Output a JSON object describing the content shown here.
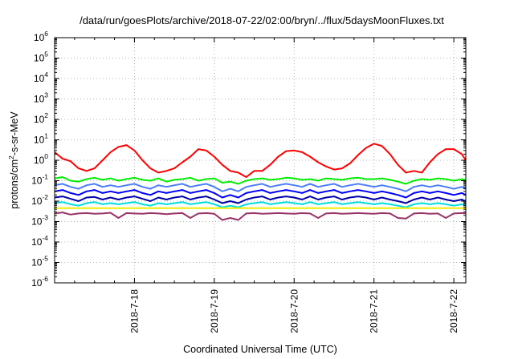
{
  "chart_data": {
    "type": "line",
    "title": "/data/run/goesPlots/archive/2018-07-22/02:00/bryn/../flux/5daysMoonFluxes.txt",
    "xlabel": "Coordinated Universal Time (UTC)",
    "ylabel": {
      "pre": "protons/cm",
      "sup": "2",
      "post": "-s-sr-MeV"
    },
    "xlim": [
      17.0,
      22.15
    ],
    "x_unit": "day of July 2018",
    "x_ticks": [
      {
        "x": 18,
        "label": "2018-7-18"
      },
      {
        "x": 19,
        "label": "2018-7-19"
      },
      {
        "x": 20,
        "label": "2018-7-20"
      },
      {
        "x": 21,
        "label": "2018-7-21"
      },
      {
        "x": 22,
        "label": "2018-7-22"
      }
    ],
    "y_scale": "log",
    "ylim_exp": [
      -6,
      6
    ],
    "y_ticks": [
      {
        "exp": -6,
        "base": "10",
        "sup": "-6"
      },
      {
        "exp": -5,
        "base": "10",
        "sup": "-5"
      },
      {
        "exp": -4,
        "base": "10",
        "sup": "-4"
      },
      {
        "exp": -3,
        "base": "10",
        "sup": "-3"
      },
      {
        "exp": -2,
        "base": "10",
        "sup": "-2"
      },
      {
        "exp": -1,
        "base": "10",
        "sup": "-1"
      },
      {
        "exp": 0,
        "base": "10",
        "sup": "0"
      },
      {
        "exp": 1,
        "base": "10",
        "sup": "1"
      },
      {
        "exp": 2,
        "base": "10",
        "sup": "2"
      },
      {
        "exp": 3,
        "base": "10",
        "sup": "3"
      },
      {
        "exp": 4,
        "base": "10",
        "sup": "4"
      },
      {
        "exp": 5,
        "base": "10",
        "sup": "5"
      },
      {
        "exp": 6,
        "base": "10",
        "sup": "6"
      }
    ],
    "grid": true,
    "x": [
      17.0,
      17.1,
      17.2,
      17.3,
      17.4,
      17.5,
      17.6,
      17.7,
      17.8,
      17.9,
      18.0,
      18.1,
      18.2,
      18.3,
      18.4,
      18.5,
      18.6,
      18.7,
      18.8,
      18.9,
      19.0,
      19.1,
      19.2,
      19.3,
      19.4,
      19.5,
      19.6,
      19.7,
      19.8,
      19.9,
      20.0,
      20.1,
      20.2,
      20.3,
      20.4,
      20.5,
      20.6,
      20.7,
      20.8,
      20.9,
      21.0,
      21.1,
      21.2,
      21.3,
      21.4,
      21.5,
      21.6,
      21.7,
      21.8,
      21.9,
      22.0,
      22.1,
      22.15
    ],
    "series": [
      {
        "color": "#ff0000",
        "values": [
          2.5,
          1.2,
          0.9,
          0.4,
          0.3,
          0.4,
          1.0,
          2.5,
          4.5,
          5.5,
          3.0,
          1.0,
          0.4,
          0.25,
          0.3,
          0.4,
          0.8,
          1.5,
          3.5,
          3.0,
          1.5,
          0.6,
          0.3,
          0.25,
          0.15,
          0.3,
          0.3,
          0.6,
          1.5,
          2.8,
          3.0,
          2.5,
          1.5,
          0.8,
          0.5,
          0.35,
          0.4,
          0.7,
          1.8,
          4.0,
          6.5,
          5.0,
          2.0,
          0.6,
          0.25,
          0.3,
          0.25,
          0.8,
          2.0,
          3.5,
          3.5,
          2.0,
          1.0
        ]
      },
      {
        "color": "#00ee00",
        "values": [
          0.13,
          0.15,
          0.1,
          0.09,
          0.12,
          0.14,
          0.11,
          0.13,
          0.1,
          0.12,
          0.14,
          0.11,
          0.1,
          0.13,
          0.09,
          0.11,
          0.12,
          0.14,
          0.1,
          0.12,
          0.13,
          0.08,
          0.09,
          0.07,
          0.1,
          0.12,
          0.13,
          0.11,
          0.12,
          0.14,
          0.13,
          0.11,
          0.12,
          0.1,
          0.13,
          0.12,
          0.11,
          0.13,
          0.14,
          0.12,
          0.12,
          0.13,
          0.11,
          0.09,
          0.07,
          0.1,
          0.12,
          0.11,
          0.13,
          0.12,
          0.1,
          0.12,
          0.11
        ]
      },
      {
        "color": "#4a7dff",
        "values": [
          0.06,
          0.07,
          0.05,
          0.04,
          0.06,
          0.07,
          0.05,
          0.06,
          0.05,
          0.06,
          0.07,
          0.05,
          0.04,
          0.06,
          0.05,
          0.06,
          0.07,
          0.05,
          0.06,
          0.07,
          0.05,
          0.03,
          0.04,
          0.03,
          0.05,
          0.06,
          0.07,
          0.05,
          0.06,
          0.07,
          0.06,
          0.05,
          0.07,
          0.05,
          0.06,
          0.07,
          0.05,
          0.06,
          0.07,
          0.06,
          0.05,
          0.06,
          0.05,
          0.04,
          0.03,
          0.05,
          0.06,
          0.05,
          0.06,
          0.05,
          0.04,
          0.05,
          0.04
        ]
      },
      {
        "color": "#0000ff",
        "values": [
          0.03,
          0.035,
          0.025,
          0.02,
          0.03,
          0.035,
          0.025,
          0.03,
          0.025,
          0.03,
          0.035,
          0.025,
          0.02,
          0.03,
          0.025,
          0.03,
          0.035,
          0.025,
          0.03,
          0.035,
          0.025,
          0.015,
          0.02,
          0.015,
          0.025,
          0.03,
          0.035,
          0.025,
          0.03,
          0.035,
          0.03,
          0.025,
          0.035,
          0.025,
          0.03,
          0.035,
          0.025,
          0.03,
          0.035,
          0.03,
          0.025,
          0.03,
          0.025,
          0.02,
          0.015,
          0.025,
          0.03,
          0.025,
          0.03,
          0.025,
          0.02,
          0.025,
          0.02
        ]
      },
      {
        "color": "#0000aa",
        "values": [
          0.015,
          0.017,
          0.013,
          0.01,
          0.015,
          0.016,
          0.012,
          0.015,
          0.012,
          0.015,
          0.017,
          0.013,
          0.01,
          0.015,
          0.012,
          0.015,
          0.017,
          0.012,
          0.015,
          0.017,
          0.012,
          0.008,
          0.01,
          0.008,
          0.012,
          0.015,
          0.017,
          0.012,
          0.015,
          0.017,
          0.015,
          0.012,
          0.017,
          0.012,
          0.015,
          0.017,
          0.012,
          0.015,
          0.017,
          0.015,
          0.012,
          0.015,
          0.012,
          0.01,
          0.008,
          0.012,
          0.015,
          0.012,
          0.015,
          0.012,
          0.01,
          0.012,
          0.01
        ]
      },
      {
        "color": "#00dddd",
        "values": [
          0.008,
          0.009,
          0.007,
          0.006,
          0.008,
          0.009,
          0.007,
          0.008,
          0.007,
          0.008,
          0.009,
          0.007,
          0.006,
          0.008,
          0.007,
          0.008,
          0.009,
          0.007,
          0.008,
          0.009,
          0.007,
          0.005,
          0.006,
          0.005,
          0.007,
          0.008,
          0.009,
          0.007,
          0.008,
          0.009,
          0.008,
          0.007,
          0.009,
          0.007,
          0.008,
          0.009,
          0.007,
          0.008,
          0.009,
          0.008,
          0.007,
          0.008,
          0.007,
          0.006,
          0.005,
          0.007,
          0.008,
          0.007,
          0.008,
          0.007,
          0.006,
          0.007,
          0.006
        ]
      },
      {
        "color": "#eeee00",
        "values": [
          0.0045,
          0.0045,
          0.0045,
          0.0045,
          0.0045,
          0.0045,
          0.0045,
          0.0045,
          0.0045,
          0.0045,
          0.0045,
          0.0045,
          0.0045,
          0.0045,
          0.0045,
          0.0045,
          0.0045,
          0.0045,
          0.0045,
          0.0045,
          0.0045,
          0.0045,
          0.0045,
          0.0045,
          0.0045,
          0.0045,
          0.0045,
          0.0045,
          0.0045,
          0.0045,
          0.0045,
          0.0045,
          0.0045,
          0.0045,
          0.0045,
          0.0045,
          0.0045,
          0.0045,
          0.0045,
          0.0045,
          0.0045,
          0.0045,
          0.0045,
          0.0045,
          0.0045,
          0.0045,
          0.0045,
          0.0045,
          0.0045,
          0.0045,
          0.0045,
          0.0045,
          0.0045
        ]
      },
      {
        "color": "#993366",
        "values": [
          0.0025,
          0.0028,
          0.0022,
          0.0025,
          0.0026,
          0.0024,
          0.0025,
          0.0027,
          0.0015,
          0.0026,
          0.0025,
          0.0024,
          0.0026,
          0.0025,
          0.0023,
          0.0025,
          0.0026,
          0.0015,
          0.0025,
          0.0026,
          0.0024,
          0.0012,
          0.0015,
          0.0012,
          0.0025,
          0.0026,
          0.0024,
          0.0025,
          0.0026,
          0.0025,
          0.0024,
          0.0026,
          0.0025,
          0.0015,
          0.0025,
          0.0026,
          0.0024,
          0.0025,
          0.0026,
          0.0025,
          0.0024,
          0.0026,
          0.0025,
          0.0015,
          0.0014,
          0.0025,
          0.0026,
          0.0024,
          0.0025,
          0.0015,
          0.0025,
          0.0026,
          0.0025
        ]
      }
    ]
  }
}
